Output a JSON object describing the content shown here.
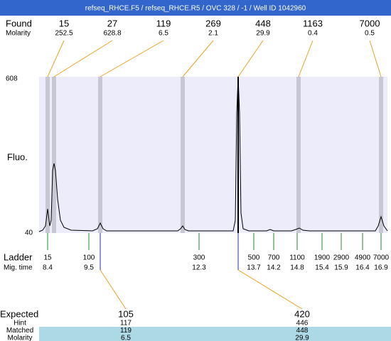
{
  "title": "refseq_RHCE.F5 / refseq_RHCE.R5 / OVC 328 / -1 / Well ID 1042960",
  "found": {
    "label": "Found",
    "sublabel": "Molarity",
    "peaks": [
      {
        "size": 15,
        "molarity": 252.5
      },
      {
        "size": 27,
        "molarity": 628.8
      },
      {
        "size": 119,
        "molarity": 6.5
      },
      {
        "size": 269,
        "molarity": 2.1
      },
      {
        "size": 448,
        "molarity": 29.9
      },
      {
        "size": 1163,
        "molarity": 0.4
      },
      {
        "size": 7000,
        "molarity": 0.5
      }
    ]
  },
  "axis": {
    "label": "Fluo.",
    "top": 608,
    "bottom": 40
  },
  "ladder": {
    "label": "Ladder",
    "sublabel": "Mig. time",
    "entries": [
      {
        "size": 15,
        "time": 8.4
      },
      {
        "size": 100,
        "time": 9.5
      },
      {
        "size": 300,
        "time": 12.3
      },
      {
        "size": 500,
        "time": 13.7
      },
      {
        "size": 700,
        "time": 14.2
      },
      {
        "size": 1100,
        "time": 14.8
      },
      {
        "size": 1900,
        "time": 15.4
      },
      {
        "size": 2900,
        "time": 15.9
      },
      {
        "size": 4900,
        "time": 16.4
      },
      {
        "size": 7000,
        "time": 16.9
      }
    ]
  },
  "expected": {
    "label": "Expected",
    "rows": [
      "Hint",
      "Matched",
      "Molarity"
    ],
    "items": [
      {
        "expected": 105,
        "hint": 117,
        "matched": 119,
        "molarity": 6.5
      },
      {
        "expected": 420,
        "hint": 446,
        "matched": 448,
        "molarity": 29.9
      }
    ]
  }
}
